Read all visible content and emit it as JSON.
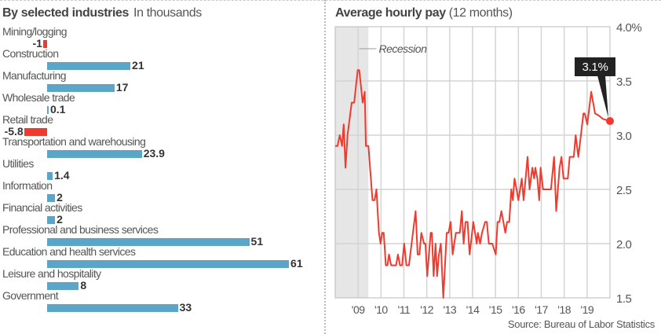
{
  "chart_data": [
    {
      "type": "bar",
      "orientation": "horizontal",
      "title": "By selected industries",
      "subtitle": "In thousands",
      "categories": [
        "Mining/logging",
        "Construction",
        "Manufacturing",
        "Wholesale trade",
        "Retail trade",
        "Transportation and warehousing",
        "Utilities",
        "Information",
        "Financial activities",
        "Professional and business services",
        "Education and health services",
        "Leisure and hospitality",
        "Government"
      ],
      "values": [
        -1,
        21,
        17,
        0.1,
        -5.8,
        23.9,
        1.4,
        2,
        2,
        51,
        61,
        8,
        33
      ],
      "value_labels": [
        "-1",
        "21",
        "17",
        "0.1",
        "-5.8",
        "23.9",
        "1.4",
        "2",
        "2",
        "51",
        "61",
        "8",
        "33"
      ],
      "colors": {
        "positive": "#5aa5c8",
        "negative": "#f03a2e"
      }
    },
    {
      "type": "line",
      "title": "Average hourly pay",
      "subtitle": "(12 months)",
      "ylim": [
        1.5,
        4.0
      ],
      "xlim": [
        2008.0,
        2020.0
      ],
      "yticks": [
        4.0,
        3.5,
        3.0,
        2.5,
        2.0,
        1.5
      ],
      "ytick_labels": [
        "4.0%",
        "3.5",
        "3.0",
        "2.5",
        "2.0",
        "1.5"
      ],
      "xticks": [
        2009,
        2010,
        2011,
        2012,
        2013,
        2014,
        2015,
        2016,
        2017,
        2018,
        2019
      ],
      "xtick_labels": [
        "'09",
        "'10",
        "'11",
        "'12",
        "'13",
        "'14",
        "'15",
        "'16",
        "'17",
        "'18",
        "'19"
      ],
      "grid": true,
      "recession": {
        "label": "Recession",
        "start": 2008.0,
        "end": 2009.45
      },
      "callout": {
        "label": "3.1%",
        "x": 2020.0,
        "y": 3.13
      },
      "line_color": "#f03a2e",
      "series": [
        {
          "name": "Average hourly pay",
          "points": [
            [
              2008.0,
              2.9
            ],
            [
              2008.1,
              2.9
            ],
            [
              2008.2,
              3.0
            ],
            [
              2008.3,
              2.9
            ],
            [
              2008.37,
              3.1
            ],
            [
              2008.45,
              2.7
            ],
            [
              2008.54,
              3.0
            ],
            [
              2008.72,
              3.3
            ],
            [
              2008.83,
              3.3
            ],
            [
              2008.98,
              3.6
            ],
            [
              2009.05,
              3.6
            ],
            [
              2009.2,
              3.3
            ],
            [
              2009.29,
              3.4
            ],
            [
              2009.34,
              2.9
            ],
            [
              2009.45,
              2.9
            ],
            [
              2009.63,
              2.4
            ],
            [
              2009.72,
              2.4
            ],
            [
              2009.8,
              2.5
            ],
            [
              2009.91,
              2.1
            ],
            [
              2009.98,
              2.0
            ],
            [
              2010.05,
              2.1
            ],
            [
              2010.12,
              2.1
            ],
            [
              2010.21,
              1.8
            ],
            [
              2010.28,
              1.8
            ],
            [
              2010.35,
              1.9
            ],
            [
              2010.44,
              1.8
            ],
            [
              2010.66,
              1.8
            ],
            [
              2010.74,
              1.9
            ],
            [
              2010.83,
              1.8
            ],
            [
              2010.92,
              1.8
            ],
            [
              2011.01,
              2.0
            ],
            [
              2011.11,
              1.8
            ],
            [
              2011.22,
              1.8
            ],
            [
              2011.51,
              2.3
            ],
            [
              2011.6,
              1.9
            ],
            [
              2011.68,
              1.9
            ],
            [
              2011.76,
              2.1
            ],
            [
              2011.88,
              2.0
            ],
            [
              2011.94,
              2.0
            ],
            [
              2012.02,
              1.7
            ],
            [
              2012.17,
              2.1
            ],
            [
              2012.22,
              2.1
            ],
            [
              2012.3,
              1.7
            ],
            [
              2012.38,
              2.0
            ],
            [
              2012.45,
              1.7
            ],
            [
              2012.53,
              1.9
            ],
            [
              2012.61,
              2.0
            ],
            [
              2012.72,
              1.5
            ],
            [
              2012.87,
              2.1
            ],
            [
              2012.95,
              2.1
            ],
            [
              2013.04,
              2.2
            ],
            [
              2013.13,
              1.9
            ],
            [
              2013.27,
              2.1
            ],
            [
              2013.44,
              2.1
            ],
            [
              2013.53,
              2.3
            ],
            [
              2013.61,
              2.0
            ],
            [
              2013.69,
              2.2
            ],
            [
              2013.78,
              2.2
            ],
            [
              2013.87,
              1.9
            ],
            [
              2014.03,
              2.2
            ],
            [
              2014.18,
              2.0
            ],
            [
              2014.23,
              2.1
            ],
            [
              2014.33,
              2.0
            ],
            [
              2014.41,
              2.1
            ],
            [
              2014.55,
              2.2
            ],
            [
              2014.62,
              2.2
            ],
            [
              2014.71,
              2.0
            ],
            [
              2014.86,
              2.0
            ],
            [
              2015.01,
              1.9
            ],
            [
              2015.09,
              2.2
            ],
            [
              2015.17,
              2.2
            ],
            [
              2015.26,
              2.3
            ],
            [
              2015.43,
              2.1
            ],
            [
              2015.51,
              2.2
            ],
            [
              2015.6,
              2.2
            ],
            [
              2015.69,
              2.5
            ],
            [
              2015.76,
              2.4
            ],
            [
              2015.83,
              2.6
            ],
            [
              2015.92,
              2.5
            ],
            [
              2016.0,
              2.4
            ],
            [
              2016.15,
              2.6
            ],
            [
              2016.23,
              2.4
            ],
            [
              2016.4,
              2.8
            ],
            [
              2016.49,
              2.5
            ],
            [
              2016.61,
              2.7
            ],
            [
              2016.69,
              2.6
            ],
            [
              2016.74,
              2.7
            ],
            [
              2016.83,
              2.6
            ],
            [
              2016.91,
              2.4
            ],
            [
              2016.97,
              2.7
            ],
            [
              2017.08,
              2.5
            ],
            [
              2017.42,
              2.5
            ],
            [
              2017.56,
              2.8
            ],
            [
              2017.65,
              2.3
            ],
            [
              2017.8,
              2.7
            ],
            [
              2017.88,
              2.8
            ],
            [
              2017.97,
              2.6
            ],
            [
              2018.16,
              2.6
            ],
            [
              2018.24,
              2.8
            ],
            [
              2018.42,
              2.8
            ],
            [
              2018.5,
              3.0
            ],
            [
              2018.62,
              2.8
            ],
            [
              2018.84,
              3.2
            ],
            [
              2018.9,
              3.2
            ],
            [
              2019.01,
              3.1
            ],
            [
              2019.18,
              3.4
            ],
            [
              2019.35,
              3.2
            ],
            [
              2019.52,
              3.18
            ],
            [
              2019.69,
              3.15
            ],
            [
              2020.0,
              3.13
            ]
          ]
        }
      ]
    }
  ],
  "source": "Source: Bureau of Labor Statistics"
}
